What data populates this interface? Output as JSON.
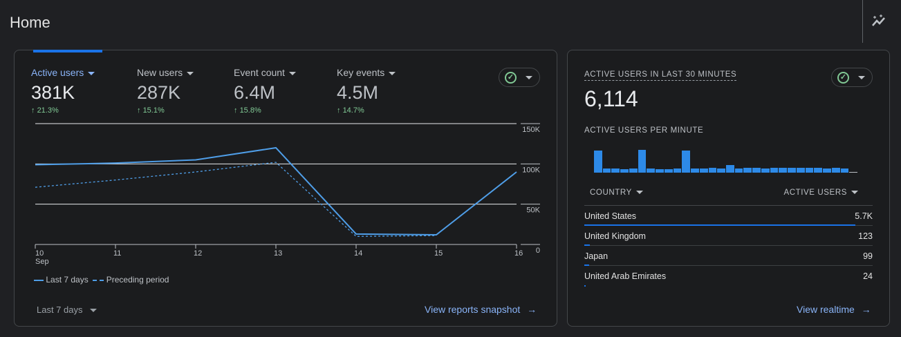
{
  "header": {
    "title": "Home",
    "insights_icon": "insights-sparkle-icon"
  },
  "overview": {
    "metrics": [
      {
        "label": "Active users",
        "value": "381K",
        "delta": "21.3%",
        "active": true
      },
      {
        "label": "New users",
        "value": "287K",
        "delta": "15.1%",
        "active": false
      },
      {
        "label": "Event count",
        "value": "6.4M",
        "delta": "15.8%",
        "active": false
      },
      {
        "label": "Key events",
        "value": "4.5M",
        "delta": "14.7%",
        "active": false
      }
    ],
    "date_range": "Last 7 days",
    "link": "View reports snapshot"
  },
  "chart_data": {
    "type": "line",
    "x": [
      "10",
      "11",
      "12",
      "13",
      "14",
      "15",
      "16"
    ],
    "x_sublabel": "Sep",
    "ylim": [
      0,
      150000
    ],
    "yticks": [
      "0",
      "50K",
      "100K",
      "150K"
    ],
    "ytick_values": [
      0,
      50000,
      100000,
      150000
    ],
    "grid": true,
    "legend_position": "bottom-left",
    "series": [
      {
        "name": "Last 7 days",
        "values": [
          99000,
          101000,
          105000,
          120000,
          13000,
          12000,
          90000
        ],
        "color": "#4f9ee8",
        "style": "solid"
      },
      {
        "name": "Preceding period",
        "values": [
          71000,
          80000,
          90000,
          102000,
          10000,
          11000,
          null
        ],
        "color": "#4f9ee8",
        "style": "dashed"
      }
    ]
  },
  "realtime": {
    "title": "ACTIVE USERS IN LAST 30 MINUTES",
    "value": "6,114",
    "per_minute_label": "ACTIVE USERS PER MINUTE",
    "per_minute": [
      95,
      18,
      18,
      15,
      18,
      98,
      18,
      15,
      15,
      18,
      95,
      18,
      18,
      21,
      18,
      33,
      18,
      21,
      21,
      18,
      21,
      21,
      21,
      21,
      21,
      21,
      18,
      21,
      18,
      0
    ],
    "col_country": "COUNTRY",
    "col_users": "ACTIVE USERS",
    "rows": [
      {
        "country": "United States",
        "users": "5.7K",
        "share": 0.94
      },
      {
        "country": "United Kingdom",
        "users": "123",
        "share": 0.02
      },
      {
        "country": "Japan",
        "users": "99",
        "share": 0.017
      },
      {
        "country": "United Arab Emirates",
        "users": "24",
        "share": 0.004
      }
    ],
    "link": "View realtime"
  }
}
